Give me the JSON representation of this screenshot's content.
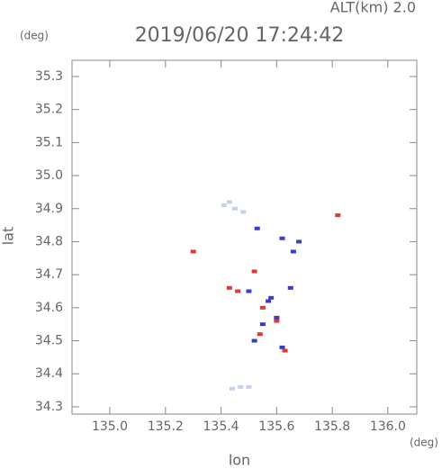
{
  "chart_data": {
    "type": "scatter",
    "title": "2019/06/20 17:24:42",
    "subtitle": "ALT(km) 2.0",
    "x_label": "lon",
    "y_label": "lat",
    "x_unit": "(deg)",
    "y_unit": "(deg)",
    "xlim": [
      134.864,
      136.104
    ],
    "ylim": [
      34.278,
      35.349
    ],
    "xticks": [
      {
        "value": 135,
        "label": "135.0"
      },
      135.2,
      135.4,
      135.6,
      135.8,
      {
        "value": 136,
        "label": "136.0"
      }
    ],
    "yticks": [
      34.3,
      34.4,
      34.5,
      34.6,
      34.7,
      34.8,
      34.9,
      {
        "value": 35,
        "label": "35.0"
      },
      35.1,
      35.2,
      35.3
    ],
    "grid": false,
    "series": [
      {
        "color": "#c8d0f0",
        "x": [
          135.43,
          135.45,
          135.41,
          135.48,
          135.47,
          135.5,
          135.44
        ],
        "values": [
          34.92,
          34.9,
          34.91,
          34.89,
          34.36,
          34.36,
          34.355
        ]
      },
      {
        "color": "#3a3acc",
        "x": [
          135.53,
          135.68,
          135.62,
          135.5,
          135.58,
          135.6,
          135.55,
          135.65,
          135.52,
          135.57,
          135.66,
          135.62
        ],
        "values": [
          34.84,
          34.8,
          34.81,
          34.65,
          34.63,
          34.57,
          34.55,
          34.66,
          34.5,
          34.62,
          34.77,
          34.48
        ]
      },
      {
        "color": "#e03838",
        "x": [
          135.82,
          135.3,
          135.52,
          135.46,
          135.55,
          135.6,
          135.63,
          135.54,
          135.43
        ],
        "values": [
          34.88,
          34.77,
          34.71,
          34.65,
          34.6,
          34.56,
          34.47,
          34.52,
          34.66
        ]
      }
    ]
  }
}
